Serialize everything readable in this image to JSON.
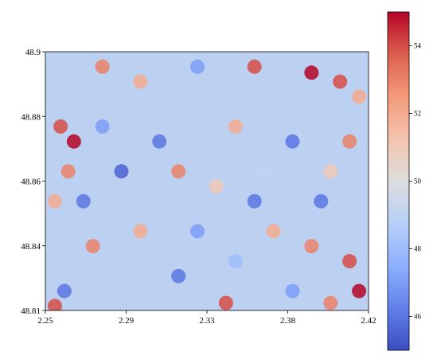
{
  "chart_data": {
    "type": "scatter",
    "colormap": "coolwarm",
    "xlim": [
      2.25,
      2.42
    ],
    "ylim": [
      48.8135,
      48.9
    ],
    "xticks": [
      {
        "value": 2.25,
        "label": "2.25"
      },
      {
        "value": 2.2925,
        "label": "2.29"
      },
      {
        "value": 2.335,
        "label": "2.33"
      },
      {
        "value": 2.3775,
        "label": "2.38"
      },
      {
        "value": 2.42,
        "label": "2.42"
      }
    ],
    "yticks": [
      {
        "value": 48.8135,
        "label": "48.81"
      },
      {
        "value": 48.835125,
        "label": "48.84"
      },
      {
        "value": 48.85675,
        "label": "48.86"
      },
      {
        "value": 48.878375,
        "label": "48.88"
      },
      {
        "value": 48.9,
        "label": "48.9"
      }
    ],
    "clim": [
      45,
      55
    ],
    "cticks": [
      46,
      48,
      50,
      52,
      54
    ],
    "x": [
      2.258,
      2.265,
      2.262,
      2.255,
      2.28,
      2.3,
      2.33,
      2.36,
      2.39,
      2.405,
      2.415,
      2.41,
      2.4,
      2.38,
      2.35,
      2.31,
      2.29,
      2.32,
      2.34,
      2.36,
      2.37,
      2.39,
      2.41,
      2.415,
      2.4,
      2.38,
      2.345,
      2.32,
      2.3,
      2.275,
      2.26,
      2.255,
      2.27,
      2.33,
      2.35,
      2.28,
      2.365,
      2.395
    ],
    "y": [
      48.875,
      48.87,
      48.86,
      48.85,
      48.895,
      48.89,
      48.895,
      48.895,
      48.893,
      48.89,
      48.885,
      48.87,
      48.86,
      48.87,
      48.875,
      48.87,
      48.86,
      48.86,
      48.855,
      48.85,
      48.84,
      48.835,
      48.83,
      48.82,
      48.816,
      48.82,
      48.816,
      48.825,
      48.84,
      48.835,
      48.82,
      48.815,
      48.85,
      48.84,
      48.83,
      48.875,
      48.86,
      48.85
    ],
    "values": [
      54,
      55,
      53,
      52,
      53,
      52,
      47,
      54,
      55,
      54,
      52,
      53,
      51,
      46,
      52,
      46,
      45.5,
      53,
      51,
      46,
      52,
      53,
      54,
      55,
      53,
      47,
      54,
      46,
      52,
      53,
      46,
      54,
      46,
      47,
      48,
      47,
      49,
      46
    ]
  }
}
